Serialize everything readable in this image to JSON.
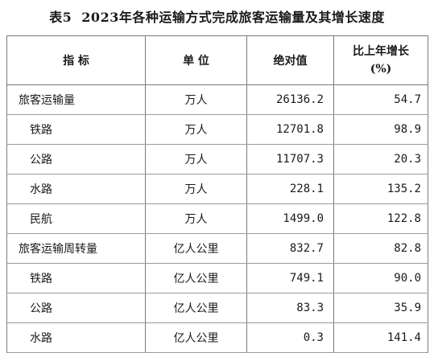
{
  "title": {
    "label": "表5",
    "text": "2023年各种运输方式完成旅客运输量及其增长速度"
  },
  "table": {
    "headers": {
      "indicator": "指  标",
      "unit": "单  位",
      "absolute": "绝对值",
      "growth_line1": "比上年增长",
      "growth_line2": "(%)"
    },
    "rows": [
      {
        "name": "旅客运输量",
        "unit": "万人",
        "value": "26136.2",
        "growth": "54.7",
        "level": 0
      },
      {
        "name": "铁路",
        "unit": "万人",
        "value": "12701.8",
        "growth": "98.9",
        "level": 1
      },
      {
        "name": "公路",
        "unit": "万人",
        "value": "11707.3",
        "growth": "20.3",
        "level": 1
      },
      {
        "name": "水路",
        "unit": "万人",
        "value": "228.1",
        "growth": "135.2",
        "level": 1
      },
      {
        "name": "民航",
        "unit": "万人",
        "value": "1499.0",
        "growth": "122.8",
        "level": 1
      },
      {
        "name": "旅客运输周转量",
        "unit": "亿人公里",
        "value": "832.7",
        "growth": "82.8",
        "level": 0
      },
      {
        "name": "铁路",
        "unit": "亿人公里",
        "value": "749.1",
        "growth": "90.0",
        "level": 1
      },
      {
        "name": "公路",
        "unit": "亿人公里",
        "value": "83.3",
        "growth": "35.9",
        "level": 1
      },
      {
        "name": "水路",
        "unit": "亿人公里",
        "value": "0.3",
        "growth": "141.4",
        "level": 1
      }
    ]
  }
}
